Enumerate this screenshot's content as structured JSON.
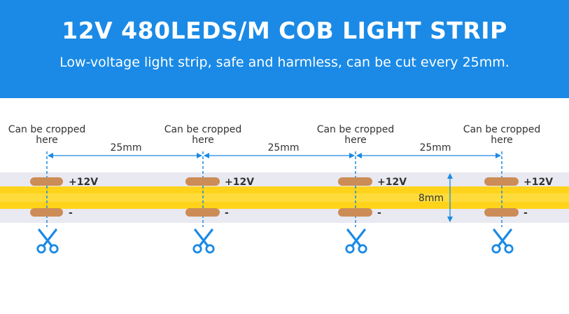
{
  "header": {
    "title": "12V 480LEDS/M COB LIGHT STRIP",
    "subtitle": "Low-voltage light strip, safe and harmless, can be cut every 25mm."
  },
  "cut_points": [
    {
      "line1": "Can be cropped",
      "line2": "here"
    },
    {
      "line1": "Can be cropped",
      "line2": "here"
    },
    {
      "line1": "Can be cropped",
      "line2": "here"
    },
    {
      "line1": "Can be cropped",
      "line2": "here"
    }
  ],
  "spacing_labels": [
    "25mm",
    "25mm",
    "25mm"
  ],
  "pads": {
    "positive": "+12V",
    "negative": "-"
  },
  "strip_width_label": "8mm",
  "icons": {
    "cut": "scissors-icon"
  },
  "colors": {
    "banner": "#1a8ae6",
    "accent": "#1a8ae6",
    "strip_light": "#ffd31a",
    "strip_body": "#e9e9f1",
    "pad": "#cc8c57"
  }
}
